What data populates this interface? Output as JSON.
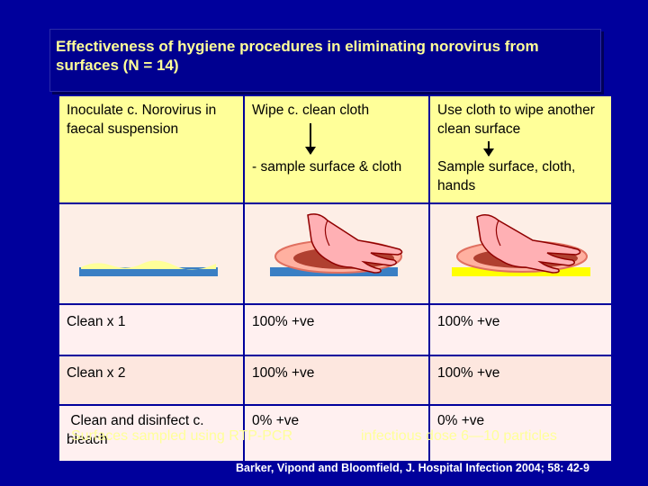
{
  "title": "Effectiveness of hygiene procedures in eliminating norovirus from surfaces (N = 14)",
  "table": {
    "header": {
      "col1": "Inoculate c. Norovirus in faecal suspension",
      "col2_top": "Wipe c. clean cloth",
      "col2_bottom": "- sample surface & cloth",
      "col3_top": "Use cloth to wipe another clean surface",
      "col3_bottom": "Sample surface, cloth, hands"
    },
    "rows": [
      {
        "label": "Clean x 1",
        "step2": "100% +ve",
        "step3": "100% +ve"
      },
      {
        "label": "Clean x 2",
        "step2": "100% +ve",
        "step3": "100% +ve"
      },
      {
        "label": " Clean and disinfect c. bleach",
        "step2": "0% +ve",
        "step3": "0% +ve"
      }
    ]
  },
  "footer": {
    "left": "Surfaces sampled using RTP-PCR",
    "right": "infectious dose 6—10 particles"
  },
  "citation": "Barker, Vipond and Bloomfield, J. Hospital Infection 2004; 58: 42-9",
  "colors": {
    "background": "#00009c",
    "title_text": "#ffff99",
    "header_cells": "#ffff99",
    "surface_blue": "#3a7fc4",
    "surface_yellow": "#ffff00",
    "hand": "#ffb0b4",
    "soil": "#b04030"
  },
  "icons": [
    "down-arrow-icon",
    "hand-wiping-icon",
    "surface-icon"
  ]
}
